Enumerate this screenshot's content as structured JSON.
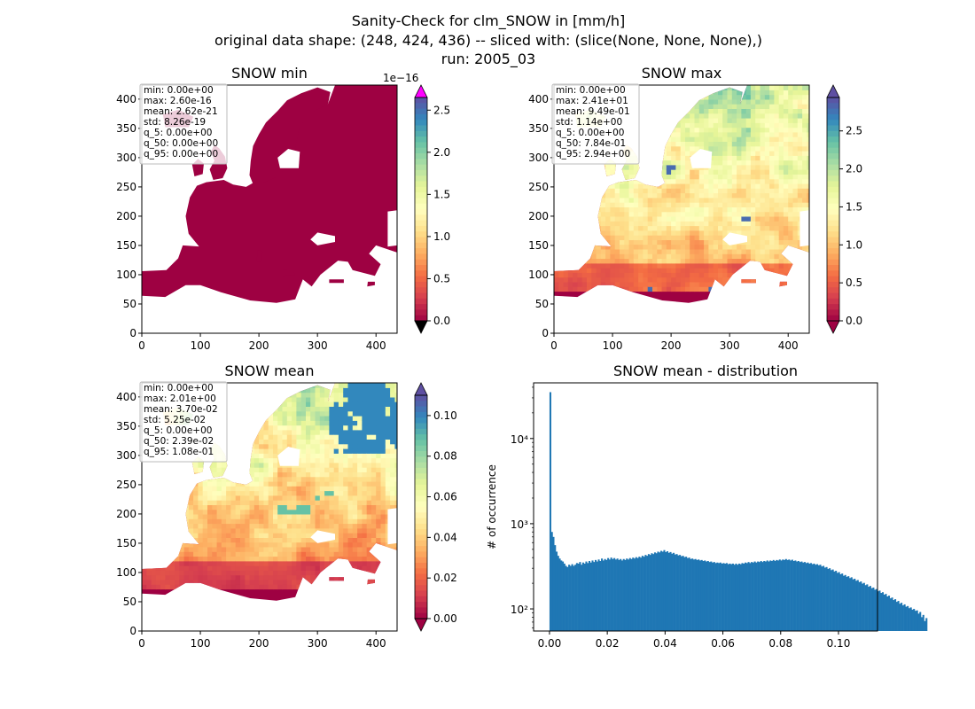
{
  "figure": {
    "title_lines": [
      "Sanity-Check for clm_SNOW in [mm/h]",
      "original data shape: (248, 424, 436) -- sliced with: (slice(None, None, None),)",
      "run: 2005_03"
    ]
  },
  "colors": {
    "sea_dark_red": "#9e0142",
    "histogram_bar": "#1f77b4",
    "axes": "#000000",
    "colorbar_over": "#ff00ff",
    "colorbar_under": "#000000"
  },
  "colormap_stops": [
    "#9e0142",
    "#d53e4f",
    "#f46d43",
    "#fdae61",
    "#fee08b",
    "#ffffbf",
    "#e6f598",
    "#abdda4",
    "#66c2a5",
    "#3288bd",
    "#5e4fa2"
  ],
  "map_axes": {
    "x_ticks": [
      "0",
      "100",
      "200",
      "300",
      "400"
    ],
    "y_ticks": [
      "0",
      "50",
      "100",
      "150",
      "200",
      "250",
      "300",
      "350",
      "400"
    ],
    "xlim": [
      0,
      436
    ],
    "ylim": [
      0,
      424
    ]
  },
  "chart_data": [
    {
      "type": "heatmap",
      "title": "SNOW min",
      "stats": [
        "min: 0.00e+00",
        "max: 2.60e-16",
        "mean: 2.62e-21",
        "std: 8.26e-19",
        "q_5: 0.00e+00",
        "q_50: 0.00e+00",
        "q_95: 0.00e+00"
      ],
      "colorbar": {
        "ticks": [
          "0.0",
          "0.5",
          "1.0",
          "1.5",
          "2.0",
          "2.5"
        ],
        "tick_values": [
          0,
          0.5,
          1.0,
          1.5,
          2.0,
          2.5
        ],
        "range": [
          0,
          2.65
        ],
        "offset_label": "1e−16",
        "extend": "both"
      },
      "field": "min"
    },
    {
      "type": "heatmap",
      "title": "SNOW max",
      "stats": [
        "min: 0.00e+00",
        "max: 2.41e+01",
        "mean: 9.49e-01",
        "std: 1.14e+00",
        "q_5: 0.00e+00",
        "q_50: 7.84e-01",
        "q_95: 2.94e+00"
      ],
      "colorbar": {
        "ticks": [
          "0.0",
          "0.5",
          "1.0",
          "1.5",
          "2.0",
          "2.5"
        ],
        "tick_values": [
          0,
          0.5,
          1.0,
          1.5,
          2.0,
          2.5
        ],
        "range": [
          0,
          2.94
        ],
        "offset_label": "",
        "extend": "both"
      },
      "field": "max"
    },
    {
      "type": "heatmap",
      "title": "SNOW mean",
      "stats": [
        "min: 0.00e+00",
        "max: 2.01e+00",
        "mean: 3.70e-02",
        "std: 5.25e-02",
        "q_5: 0.00e+00",
        "q_50: 2.39e-02",
        "q_95: 1.08e-01"
      ],
      "colorbar": {
        "ticks": [
          "0.00",
          "0.02",
          "0.04",
          "0.06",
          "0.08",
          "0.10"
        ],
        "tick_values": [
          0,
          0.02,
          0.04,
          0.06,
          0.08,
          0.1
        ],
        "range": [
          0,
          0.11
        ],
        "offset_label": "",
        "extend": "both"
      },
      "field": "mean"
    },
    {
      "type": "bar",
      "title": "SNOW mean - distribution",
      "ylabel": "# of occurrence",
      "xlabel": "",
      "y_scale": "log",
      "xlim": [
        -0.0055,
        0.1135
      ],
      "ylim": [
        55,
        45000
      ],
      "x_ticks": [
        0.0,
        0.02,
        0.04,
        0.06,
        0.08,
        0.1
      ],
      "x_tick_labels": [
        "0.00",
        "0.02",
        "0.04",
        "0.06",
        "0.08",
        "0.10"
      ],
      "y_ticks": [
        100,
        1000,
        10000
      ],
      "y_tick_labels": [
        "10²",
        "10³",
        "10⁴"
      ],
      "bin_start": 0.0,
      "bin_width": 0.00054,
      "counts": [
        35000,
        800,
        700,
        560,
        470,
        420,
        390,
        370,
        360,
        340,
        320,
        310,
        330,
        320,
        335,
        320,
        330,
        345,
        340,
        355,
        330,
        350,
        340,
        360,
        345,
        365,
        350,
        370,
        355,
        375,
        360,
        380,
        365,
        390,
        370,
        385,
        375,
        395,
        380,
        400,
        385,
        395,
        380,
        390,
        375,
        385,
        370,
        385,
        375,
        390,
        380,
        395,
        385,
        400,
        390,
        405,
        395,
        410,
        400,
        420,
        410,
        430,
        420,
        440,
        430,
        450,
        440,
        460,
        450,
        470,
        460,
        480,
        470,
        490,
        465,
        475,
        455,
        465,
        445,
        455,
        435,
        440,
        425,
        430,
        415,
        420,
        405,
        410,
        395,
        400,
        385,
        390,
        380,
        385,
        375,
        380,
        370,
        375,
        365,
        370,
        360,
        365,
        355,
        360,
        350,
        355,
        345,
        350,
        345,
        350,
        340,
        345,
        340,
        345,
        335,
        340,
        335,
        340,
        330,
        340,
        330,
        340,
        335,
        345,
        340,
        350,
        345,
        355,
        345,
        355,
        350,
        360,
        350,
        360,
        355,
        365,
        355,
        365,
        360,
        370,
        360,
        370,
        365,
        375,
        365,
        375,
        370,
        380,
        370,
        380,
        375,
        385,
        375,
        380,
        370,
        378,
        365,
        370,
        360,
        365,
        355,
        360,
        350,
        355,
        345,
        350,
        340,
        345,
        335,
        340,
        330,
        335,
        325,
        330,
        315,
        320,
        305,
        310,
        295,
        300,
        285,
        290,
        275,
        280,
        265,
        270,
        255,
        260,
        245,
        250,
        238,
        242,
        230,
        235,
        222,
        226,
        214,
        218,
        206,
        210,
        198,
        202,
        190,
        194,
        182,
        186,
        175,
        178,
        168,
        171,
        161,
        164,
        154,
        157,
        147,
        150,
        140,
        143,
        133,
        136,
        127,
        130,
        121,
        124,
        115,
        118,
        110,
        113,
        106,
        108,
        102,
        104,
        98,
        100,
        95,
        96,
        88,
        92,
        80,
        85,
        72,
        78
      ]
    }
  ]
}
